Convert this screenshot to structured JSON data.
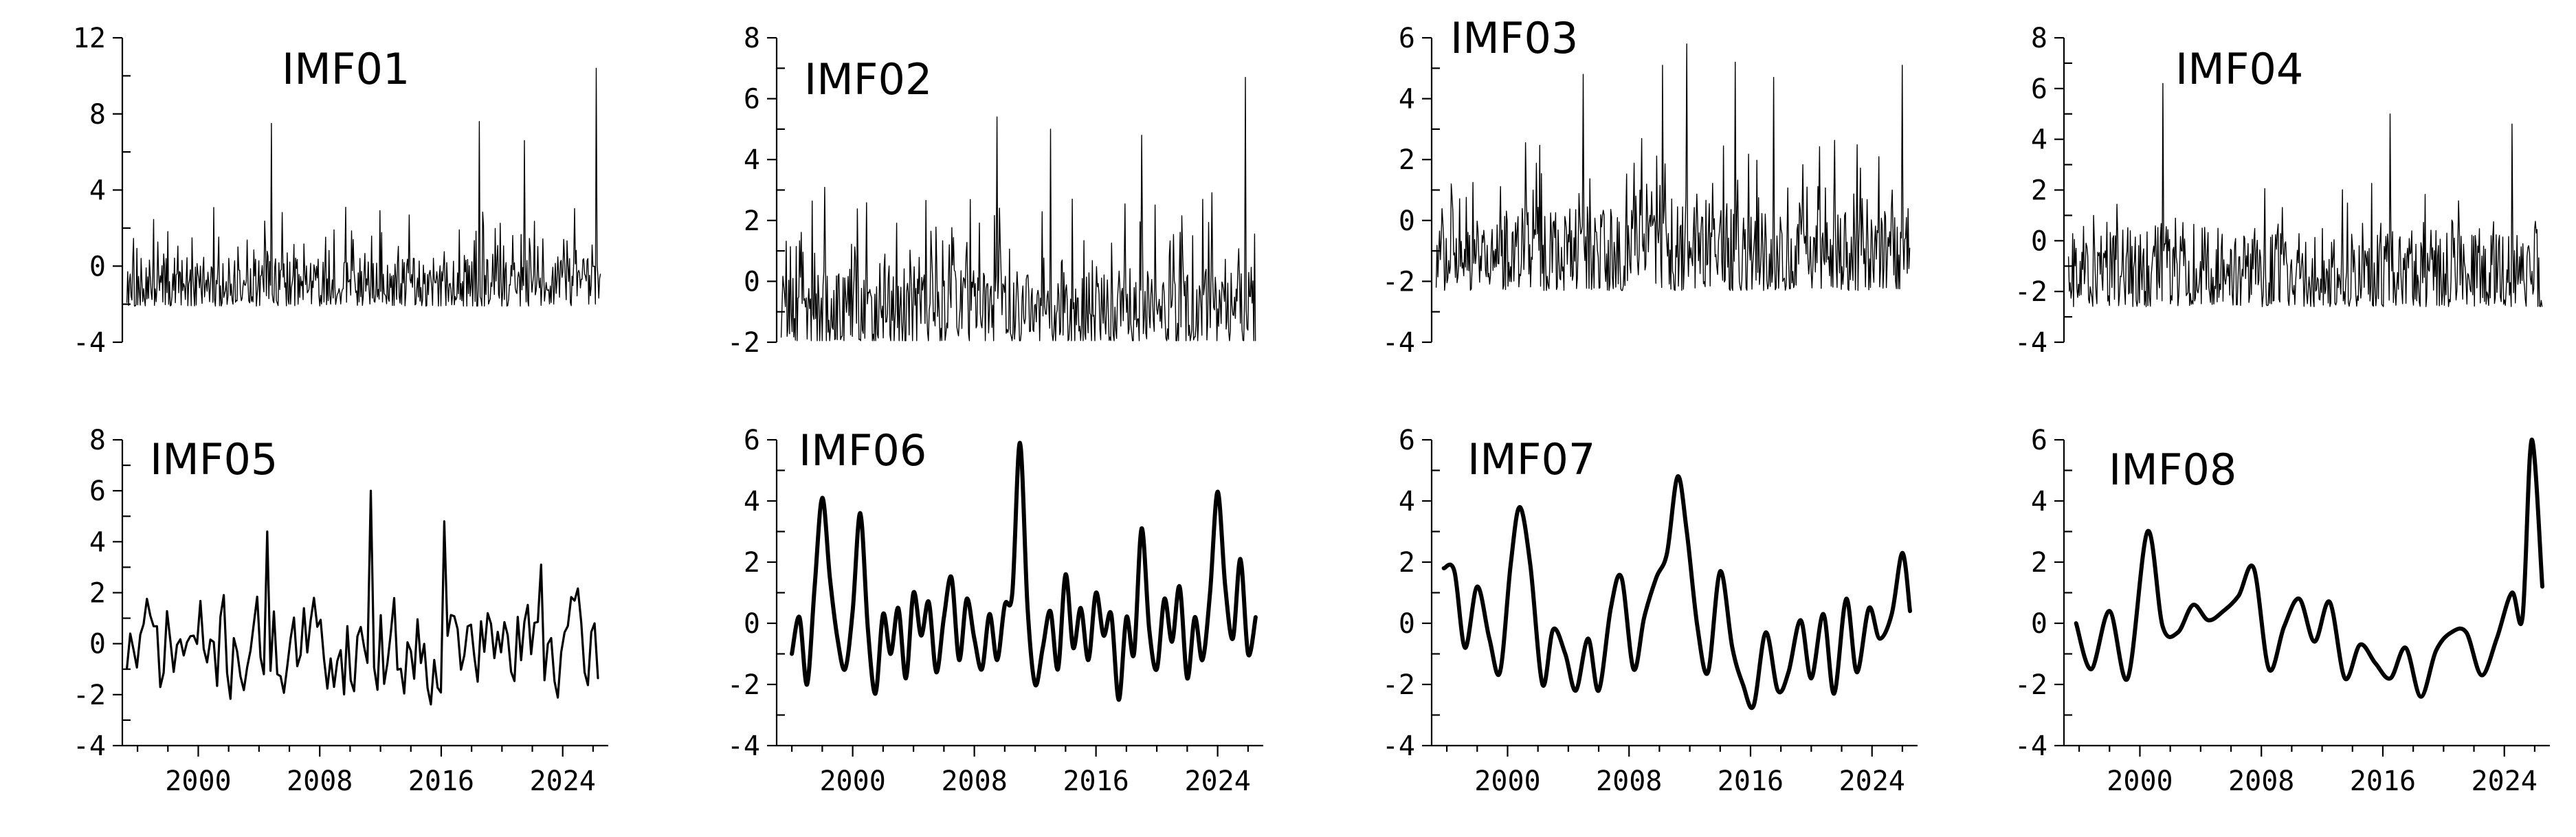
{
  "chart_data": [
    {
      "type": "line",
      "title": "IMF01",
      "ylim": [
        -4,
        12
      ],
      "yticks": [
        -4,
        0,
        4,
        8,
        12
      ],
      "xlim": [
        1995,
        2027
      ],
      "xticks": [],
      "series": [
        {
          "kind": "noise",
          "seed": 11,
          "lo": -2.1,
          "hi": 3.6,
          "spikes": [
            [
              2004.8,
              7.5
            ],
            [
              2018.5,
              7.6
            ],
            [
              2021.5,
              6.6
            ],
            [
              2026.2,
              10.4
            ]
          ]
        }
      ]
    },
    {
      "type": "line",
      "title": "IMF02",
      "ylim": [
        -2,
        8
      ],
      "yticks": [
        -2,
        0,
        2,
        4,
        6,
        8
      ],
      "xlim": [
        1995,
        2027
      ],
      "xticks": [],
      "series": [
        {
          "kind": "noise",
          "seed": 23,
          "lo": -2.0,
          "hi": 3.2,
          "spikes": [
            [
              2009.5,
              5.4
            ],
            [
              2013.0,
              5.0
            ],
            [
              2019.0,
              4.8
            ],
            [
              2025.8,
              6.7
            ]
          ]
        }
      ]
    },
    {
      "type": "line",
      "title": "IMF03",
      "ylim": [
        -4,
        6
      ],
      "yticks": [
        -4,
        -2,
        0,
        2,
        4,
        6
      ],
      "xlim": [
        1995,
        2027
      ],
      "xticks": [],
      "series": [
        {
          "kind": "noise",
          "seed": 37,
          "lo": -2.3,
          "hi": 2.8,
          "spikes": [
            [
              2005.0,
              4.8
            ],
            [
              2010.2,
              5.1
            ],
            [
              2011.8,
              5.8
            ],
            [
              2015.0,
              5.2
            ],
            [
              2017.5,
              4.7
            ],
            [
              2026.0,
              5.1
            ]
          ]
        }
      ]
    },
    {
      "type": "line",
      "title": "IMF04",
      "ylim": [
        -4,
        8
      ],
      "yticks": [
        -4,
        -2,
        0,
        2,
        4,
        6,
        8
      ],
      "xlim": [
        1995,
        2027
      ],
      "xticks": [],
      "series": [
        {
          "kind": "noise",
          "seed": 53,
          "lo": -2.6,
          "hi": 2.4,
          "spikes": [
            [
              2001.5,
              6.2
            ],
            [
              2016.5,
              5.0
            ],
            [
              2024.5,
              4.6
            ]
          ]
        }
      ]
    },
    {
      "type": "line",
      "title": "IMF05",
      "ylim": [
        -4,
        8
      ],
      "yticks": [
        -4,
        -2,
        0,
        2,
        4,
        6,
        8
      ],
      "xlim": [
        1995,
        2027
      ],
      "xticks": [
        2000,
        2008,
        2016,
        2024
      ],
      "series": [
        {
          "kind": "wave",
          "seed": 71,
          "lo": -2.6,
          "hi": 2.3,
          "step": 0.22,
          "spikes": [
            [
              2004.5,
              4.4
            ],
            [
              2011.3,
              6.0
            ],
            [
              2016.2,
              4.8
            ],
            [
              2022.5,
              3.1
            ]
          ]
        }
      ]
    },
    {
      "type": "line",
      "title": "IMF06",
      "ylim": [
        -4,
        6
      ],
      "yticks": [
        -4,
        -2,
        0,
        2,
        4,
        6
      ],
      "xlim": [
        1995,
        2027
      ],
      "xticks": [
        2000,
        2008,
        2016,
        2024
      ],
      "series": [
        {
          "kind": "smooth",
          "x": [
            1996.0,
            1996.5,
            1997.0,
            1997.5,
            1998.0,
            1998.5,
            1999.0,
            1999.5,
            2000.0,
            2000.5,
            2001.0,
            2001.5,
            2002.0,
            2002.5,
            2003.0,
            2003.5,
            2004.0,
            2004.5,
            2005.0,
            2005.5,
            2006.0,
            2006.5,
            2007.0,
            2007.5,
            2008.0,
            2008.5,
            2009.0,
            2009.5,
            2010.0,
            2010.5,
            2011.0,
            2011.5,
            2012.0,
            2012.5,
            2013.0,
            2013.5,
            2014.0,
            2014.5,
            2015.0,
            2015.5,
            2016.0,
            2016.5,
            2017.0,
            2017.5,
            2018.0,
            2018.5,
            2019.0,
            2019.5,
            2020.0,
            2020.5,
            2021.0,
            2021.5,
            2022.0,
            2022.5,
            2023.0,
            2023.5,
            2024.0,
            2024.5,
            2025.0,
            2025.5,
            2026.0,
            2026.5
          ],
          "y": [
            -1.0,
            0.2,
            -2.0,
            1.2,
            4.1,
            1.5,
            -0.5,
            -1.5,
            0.4,
            3.6,
            -0.2,
            -2.3,
            0.3,
            -1.0,
            0.5,
            -1.8,
            1.0,
            -0.4,
            0.7,
            -1.6,
            0.2,
            1.5,
            -1.2,
            0.8,
            -0.5,
            -1.5,
            0.3,
            -1.2,
            0.6,
            1.0,
            5.9,
            0.5,
            -2.0,
            -0.8,
            0.4,
            -1.5,
            1.6,
            -0.8,
            0.5,
            -1.2,
            1.0,
            -0.4,
            0.3,
            -2.5,
            0.2,
            -1.0,
            3.1,
            -0.2,
            -1.5,
            0.8,
            -0.6,
            1.2,
            -1.8,
            0.2,
            -1.2,
            1.0,
            4.3,
            1.2,
            -0.5,
            2.1,
            -1.0,
            0.2
          ]
        }
      ]
    },
    {
      "type": "line",
      "title": "IMF07",
      "ylim": [
        -4,
        6
      ],
      "yticks": [
        -4,
        -2,
        0,
        2,
        4,
        6
      ],
      "xlim": [
        1995,
        2027
      ],
      "xticks": [
        2000,
        2008,
        2016,
        2024
      ],
      "series": [
        {
          "kind": "smooth",
          "x": [
            1995.8,
            1996.5,
            1997.2,
            1998.0,
            1998.8,
            1999.5,
            2000.2,
            2000.8,
            2001.5,
            2002.3,
            2003.0,
            2003.8,
            2004.5,
            2005.3,
            2006.0,
            2006.8,
            2007.5,
            2008.3,
            2009.0,
            2009.8,
            2010.5,
            2011.2,
            2011.8,
            2012.5,
            2013.2,
            2014.0,
            2014.8,
            2015.5,
            2016.2,
            2017.0,
            2017.8,
            2018.5,
            2019.3,
            2020.0,
            2020.8,
            2021.5,
            2022.3,
            2023.0,
            2023.8,
            2024.5,
            2025.3,
            2026.0,
            2026.5
          ],
          "y": [
            1.8,
            1.7,
            -0.8,
            1.2,
            -0.5,
            -1.6,
            1.9,
            3.8,
            1.9,
            -2.0,
            -0.2,
            -1.0,
            -2.2,
            -0.5,
            -2.2,
            0.5,
            1.5,
            -1.5,
            0.2,
            1.5,
            2.3,
            4.8,
            3.0,
            -0.1,
            -1.6,
            1.7,
            -0.8,
            -2.0,
            -2.7,
            -0.3,
            -2.2,
            -1.6,
            0.1,
            -1.8,
            0.3,
            -2.3,
            0.8,
            -1.6,
            0.5,
            -0.5,
            0.3,
            2.3,
            0.4
          ]
        }
      ]
    },
    {
      "type": "line",
      "title": "IMF08",
      "ylim": [
        -4,
        6
      ],
      "yticks": [
        -4,
        -2,
        0,
        2,
        4,
        6
      ],
      "xlim": [
        1995,
        2027
      ],
      "xticks": [
        2000,
        2008,
        2016,
        2024
      ],
      "series": [
        {
          "kind": "smooth",
          "x": [
            1995.8,
            1996.8,
            1998.0,
            1999.2,
            2000.5,
            2001.5,
            2002.5,
            2003.5,
            2004.5,
            2005.5,
            2006.5,
            2007.5,
            2008.5,
            2009.5,
            2010.5,
            2011.5,
            2012.5,
            2013.5,
            2014.5,
            2015.5,
            2016.5,
            2017.5,
            2018.5,
            2019.5,
            2020.5,
            2021.5,
            2022.5,
            2023.5,
            2024.5,
            2025.2,
            2025.8,
            2026.5
          ],
          "y": [
            0.0,
            -1.5,
            0.4,
            -1.8,
            3.0,
            -0.1,
            -0.3,
            0.6,
            0.1,
            0.4,
            0.9,
            1.8,
            -1.5,
            -0.1,
            0.8,
            -0.6,
            0.7,
            -1.8,
            -0.7,
            -1.3,
            -1.8,
            -0.8,
            -2.4,
            -0.9,
            -0.3,
            -0.3,
            -1.7,
            -0.5,
            1.0,
            0.2,
            6.0,
            1.2
          ]
        }
      ]
    }
  ]
}
